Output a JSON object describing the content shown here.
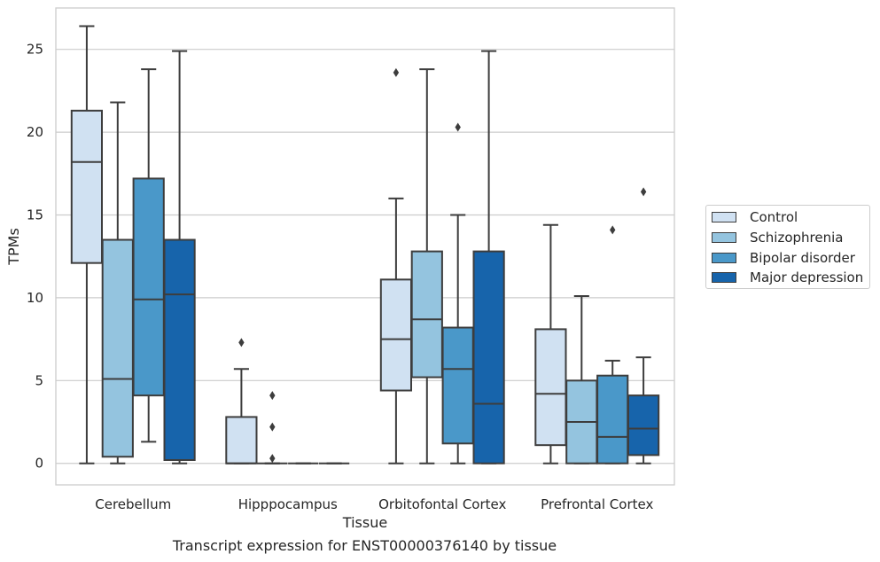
{
  "figure_title": "Transcript expression for ENST00000376140 by tissue",
  "chart_data": {
    "type": "boxplot",
    "xlabel": "Tissue",
    "ylabel": "TPMs",
    "ylim": [
      -1.3,
      27.5
    ],
    "yticks": [
      0,
      5,
      10,
      15,
      20,
      25
    ],
    "grid": "horizontal",
    "legend_position": "outside-right",
    "categories": [
      "Cerebellum",
      "Hipppocampus",
      "Orbitofontal Cortex",
      "Prefrontal Cortex"
    ],
    "series": [
      {
        "name": "Control",
        "color": "#d0e1f2",
        "boxes": [
          {
            "min": 0,
            "q1": 12.1,
            "median": 18.2,
            "q3": 21.3,
            "max": 26.4,
            "outliers": []
          },
          {
            "min": 0,
            "q1": 0,
            "median": 0,
            "q3": 2.8,
            "max": 5.7,
            "outliers": [
              7.3
            ]
          },
          {
            "min": 0,
            "q1": 4.4,
            "median": 7.5,
            "q3": 11.1,
            "max": 16.0,
            "outliers": [
              23.6
            ]
          },
          {
            "min": 0,
            "q1": 1.1,
            "median": 4.2,
            "q3": 8.1,
            "max": 14.4,
            "outliers": []
          }
        ]
      },
      {
        "name": "Schizophrenia",
        "color": "#94c4df",
        "boxes": [
          {
            "min": 0,
            "q1": 0.4,
            "median": 5.1,
            "q3": 13.5,
            "max": 21.8,
            "outliers": []
          },
          {
            "min": 0,
            "q1": 0,
            "median": 0,
            "q3": 0,
            "max": 0,
            "outliers": [
              4.1,
              2.2,
              0.3
            ]
          },
          {
            "min": 0,
            "q1": 5.2,
            "median": 8.7,
            "q3": 12.8,
            "max": 23.8,
            "outliers": []
          },
          {
            "min": 0,
            "q1": 0,
            "median": 2.5,
            "q3": 5.0,
            "max": 10.1,
            "outliers": []
          }
        ]
      },
      {
        "name": "Bipolar disorder",
        "color": "#4a98c9",
        "boxes": [
          {
            "min": 1.3,
            "q1": 4.1,
            "median": 9.9,
            "q3": 17.2,
            "max": 23.8,
            "outliers": []
          },
          {
            "min": 0,
            "q1": 0,
            "median": 0,
            "q3": 0,
            "max": 0,
            "outliers": []
          },
          {
            "min": 0,
            "q1": 1.2,
            "median": 5.7,
            "q3": 8.2,
            "max": 15.0,
            "outliers": [
              20.3
            ]
          },
          {
            "min": 0,
            "q1": 0,
            "median": 1.6,
            "q3": 5.3,
            "max": 6.2,
            "outliers": [
              14.1
            ]
          }
        ]
      },
      {
        "name": "Major depression",
        "color": "#1764ab",
        "boxes": [
          {
            "min": 0,
            "q1": 0.2,
            "median": 10.2,
            "q3": 13.5,
            "max": 24.9,
            "outliers": []
          },
          {
            "min": 0,
            "q1": 0,
            "median": 0,
            "q3": 0,
            "max": 0,
            "outliers": []
          },
          {
            "min": 0,
            "q1": 0,
            "median": 3.6,
            "q3": 12.8,
            "max": 24.9,
            "outliers": []
          },
          {
            "min": 0,
            "q1": 0.5,
            "median": 2.1,
            "q3": 4.1,
            "max": 6.4,
            "outliers": [
              16.4
            ]
          }
        ]
      }
    ]
  }
}
